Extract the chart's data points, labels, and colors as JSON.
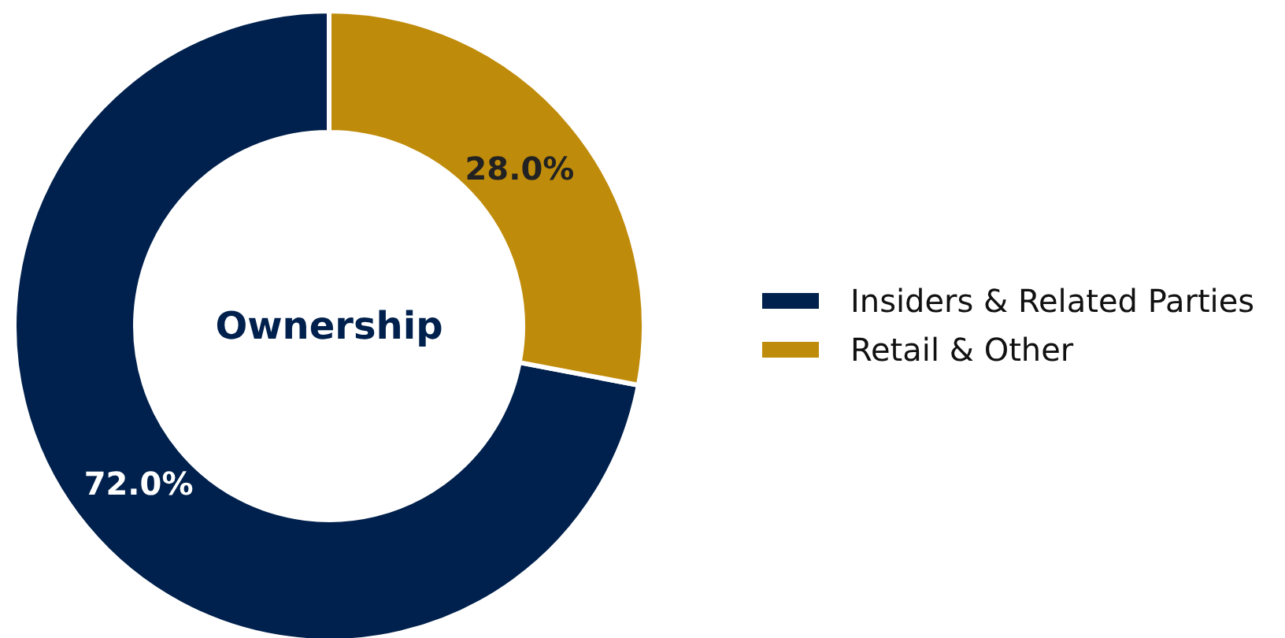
{
  "chart_data": {
    "type": "donut",
    "title": "Ownership",
    "categories": [
      "Insiders & Related Parties",
      "Retail & Other"
    ],
    "values": [
      72,
      28
    ],
    "colors": [
      "#00214d",
      "#bf8b0a"
    ],
    "value_labels": [
      "72.0%",
      "28.0%"
    ],
    "legend": "right"
  }
}
